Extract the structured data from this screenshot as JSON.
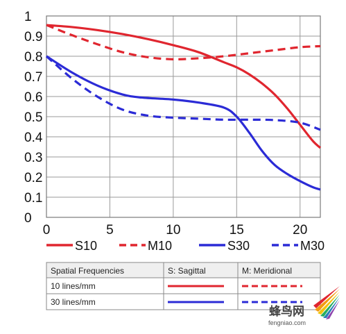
{
  "chart_data": {
    "type": "line",
    "title": "",
    "xlabel": "",
    "ylabel": "",
    "xlim": [
      0,
      21.6
    ],
    "ylim": [
      0,
      1
    ],
    "x_ticks": [
      "0",
      "5",
      "10",
      "15",
      "20"
    ],
    "y_ticks": [
      "0",
      "0.1",
      "0.2",
      "0.3",
      "0.4",
      "0.5",
      "0.6",
      "0.7",
      "0.8",
      "0.9",
      "1"
    ],
    "grid": true,
    "legend_position": "bottom",
    "series": [
      {
        "name": "S10",
        "color": "#e0262f",
        "dash": false,
        "points": [
          [
            0,
            0.955
          ],
          [
            2,
            0.945
          ],
          [
            4,
            0.93
          ],
          [
            6,
            0.91
          ],
          [
            8,
            0.885
          ],
          [
            10,
            0.855
          ],
          [
            12,
            0.82
          ],
          [
            14,
            0.77
          ],
          [
            15,
            0.745
          ],
          [
            16,
            0.71
          ],
          [
            17,
            0.665
          ],
          [
            18,
            0.61
          ],
          [
            19,
            0.54
          ],
          [
            20,
            0.46
          ],
          [
            21,
            0.38
          ],
          [
            21.6,
            0.345
          ]
        ]
      },
      {
        "name": "M10",
        "color": "#e0262f",
        "dash": true,
        "points": [
          [
            0,
            0.955
          ],
          [
            2,
            0.905
          ],
          [
            4,
            0.86
          ],
          [
            6,
            0.82
          ],
          [
            8,
            0.795
          ],
          [
            10,
            0.785
          ],
          [
            12,
            0.79
          ],
          [
            14,
            0.8
          ],
          [
            16,
            0.815
          ],
          [
            18,
            0.83
          ],
          [
            20,
            0.845
          ],
          [
            21.6,
            0.85
          ]
        ]
      },
      {
        "name": "S30",
        "color": "#2b2bd6",
        "dash": false,
        "points": [
          [
            0,
            0.8
          ],
          [
            2,
            0.72
          ],
          [
            4,
            0.655
          ],
          [
            6,
            0.61
          ],
          [
            7.5,
            0.595
          ],
          [
            10,
            0.585
          ],
          [
            12,
            0.57
          ],
          [
            14,
            0.545
          ],
          [
            15,
            0.5
          ],
          [
            16,
            0.42
          ],
          [
            17,
            0.33
          ],
          [
            18,
            0.26
          ],
          [
            19,
            0.215
          ],
          [
            20,
            0.18
          ],
          [
            21,
            0.15
          ],
          [
            21.6,
            0.138
          ]
        ]
      },
      {
        "name": "M30",
        "color": "#2b2bd6",
        "dash": true,
        "points": [
          [
            0,
            0.8
          ],
          [
            2,
            0.69
          ],
          [
            4,
            0.6
          ],
          [
            6,
            0.535
          ],
          [
            8,
            0.505
          ],
          [
            10,
            0.495
          ],
          [
            12,
            0.49
          ],
          [
            14,
            0.485
          ],
          [
            16,
            0.485
          ],
          [
            18,
            0.483
          ],
          [
            20,
            0.47
          ],
          [
            21.6,
            0.435
          ]
        ]
      }
    ],
    "table": {
      "headers": [
        "Spatial Frequencies",
        "S: Sagittal",
        "M: Meridional"
      ],
      "rows": [
        "10 lines/mm",
        "30 lines/mm"
      ]
    }
  },
  "watermark": {
    "cn": "蜂鸟网",
    "en": "fengniao.com"
  }
}
